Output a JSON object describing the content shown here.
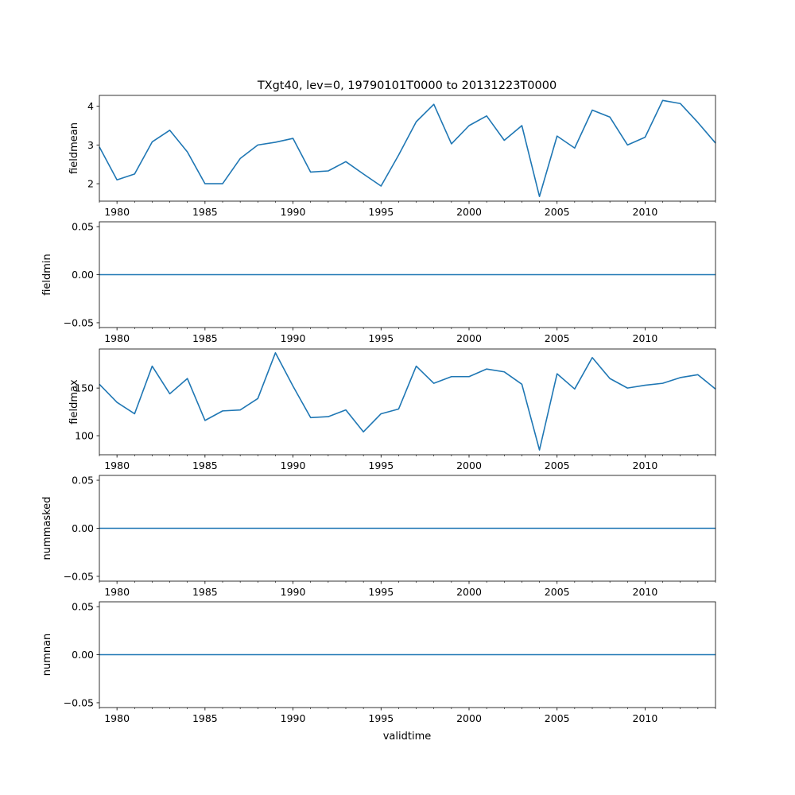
{
  "figure": {
    "title": "TXgt40, lev=0, 19790101T0000 to 20131223T0000",
    "xlabel": "validtime",
    "line_color": "#1f77b4"
  },
  "chart_data": [
    {
      "type": "line",
      "ylabel": "fieldmean",
      "x": [
        1979,
        1980,
        1981,
        1982,
        1983,
        1984,
        1985,
        1986,
        1987,
        1988,
        1989,
        1990,
        1991,
        1992,
        1993,
        1994,
        1995,
        1996,
        1997,
        1998,
        1999,
        2000,
        2001,
        2002,
        2003,
        2004,
        2005,
        2006,
        2007,
        2008,
        2009,
        2010,
        2011,
        2012,
        2013,
        2014
      ],
      "values": [
        2.95,
        2.1,
        2.25,
        3.08,
        3.38,
        2.82,
        2.0,
        2.0,
        2.65,
        3.0,
        3.07,
        3.17,
        2.3,
        2.33,
        2.57,
        2.25,
        1.94,
        2.74,
        3.6,
        4.05,
        3.03,
        3.5,
        3.75,
        3.12,
        3.5,
        1.67,
        3.23,
        2.92,
        3.9,
        3.72,
        3.0,
        3.2,
        4.15,
        4.07,
        3.58,
        3.05
      ],
      "xlim": [
        1979,
        2014
      ],
      "ylim": [
        1.55,
        4.28
      ],
      "yticks": [
        2,
        3,
        4
      ],
      "ytick_labels": [
        "2",
        "3",
        "4"
      ]
    },
    {
      "type": "line",
      "ylabel": "fieldmin",
      "x": [
        1979,
        2014
      ],
      "values": [
        0.0,
        0.0
      ],
      "xlim": [
        1979,
        2014
      ],
      "ylim": [
        -0.055,
        0.055
      ],
      "yticks": [
        -0.05,
        0.0,
        0.05
      ],
      "ytick_labels": [
        "−0.05",
        "0.00",
        "0.05"
      ]
    },
    {
      "type": "line",
      "ylabel": "fieldmax",
      "x": [
        1979,
        1980,
        1981,
        1982,
        1983,
        1984,
        1985,
        1986,
        1987,
        1988,
        1989,
        1990,
        1991,
        1992,
        1993,
        1994,
        1995,
        1996,
        1997,
        1998,
        1999,
        2000,
        2001,
        2002,
        2003,
        2004,
        2005,
        2006,
        2007,
        2008,
        2009,
        2010,
        2011,
        2012,
        2013,
        2014
      ],
      "values": [
        154,
        135,
        123,
        173,
        144,
        160,
        116,
        126,
        127,
        139,
        187,
        152,
        119,
        120,
        127,
        104,
        123,
        128,
        173,
        155,
        162,
        162,
        170,
        167,
        154,
        85,
        165,
        149,
        182,
        160,
        150,
        153,
        155,
        161,
        164,
        149
      ],
      "xlim": [
        1979,
        2014
      ],
      "ylim": [
        80,
        191
      ],
      "yticks": [
        100,
        150
      ],
      "ytick_labels": [
        "100",
        "150"
      ]
    },
    {
      "type": "line",
      "ylabel": "nummasked",
      "x": [
        1979,
        2014
      ],
      "values": [
        0.0,
        0.0
      ],
      "xlim": [
        1979,
        2014
      ],
      "ylim": [
        -0.055,
        0.055
      ],
      "yticks": [
        -0.05,
        0.0,
        0.05
      ],
      "ytick_labels": [
        "−0.05",
        "0.00",
        "0.05"
      ]
    },
    {
      "type": "line",
      "ylabel": "numnan",
      "x": [
        1979,
        2014
      ],
      "values": [
        0.0,
        0.0
      ],
      "xlim": [
        1979,
        2014
      ],
      "ylim": [
        -0.055,
        0.055
      ],
      "yticks": [
        -0.05,
        0.0,
        0.05
      ],
      "ytick_labels": [
        "−0.05",
        "0.00",
        "0.05"
      ]
    }
  ],
  "xaxis": {
    "major_ticks": [
      1980,
      1985,
      1990,
      1995,
      2000,
      2005,
      2010
    ],
    "major_labels": [
      "1980",
      "1985",
      "1990",
      "1995",
      "2000",
      "2005",
      "2010"
    ],
    "minor_ticks": [
      1979,
      1981,
      1982,
      1983,
      1984,
      1986,
      1987,
      1988,
      1989,
      1991,
      1992,
      1993,
      1994,
      1996,
      1997,
      1998,
      1999,
      2001,
      2002,
      2003,
      2004,
      2006,
      2007,
      2008,
      2009,
      2011,
      2012,
      2013,
      2014
    ]
  }
}
